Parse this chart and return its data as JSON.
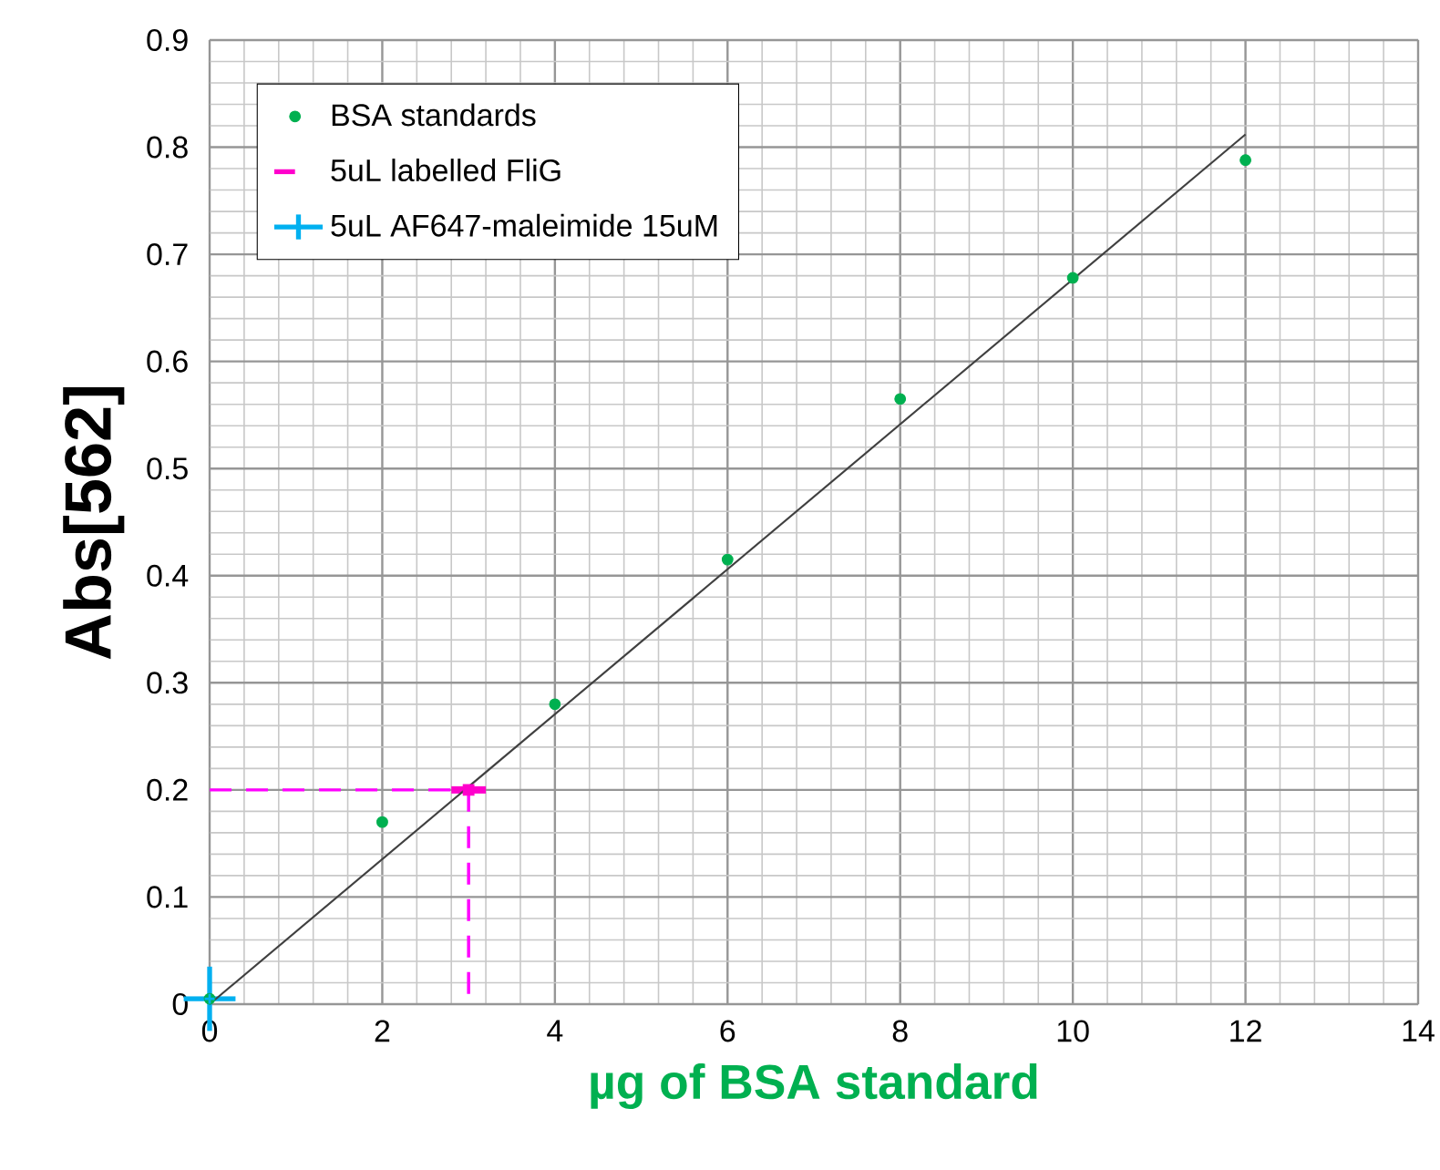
{
  "chart_data": {
    "type": "scatter",
    "xlabel": "µg of BSA standard",
    "ylabel": "Abs[562]",
    "xlim": [
      0,
      14
    ],
    "xticks": [
      0,
      2,
      4,
      6,
      8,
      10,
      12,
      14
    ],
    "ylim": [
      0,
      0.9
    ],
    "yticks": [
      0,
      0.1,
      0.2,
      0.3,
      0.4,
      0.5,
      0.6,
      0.7,
      0.8,
      0.9
    ],
    "grid": true,
    "legend": "top left",
    "series": [
      {
        "name": "BSA standards",
        "marker": "circle",
        "color": "#00b050",
        "x": [
          0,
          2,
          4,
          6,
          8,
          10,
          12
        ],
        "values": [
          0.005,
          0.17,
          0.28,
          0.415,
          0.565,
          0.678,
          0.788
        ]
      },
      {
        "name": "5uL labelled FliG",
        "marker": "square",
        "color": "#ff00cc",
        "x": [
          3
        ],
        "values": [
          0.2
        ],
        "xerrors": [
          0.2
        ]
      },
      {
        "name": "5uL AF647-maleimide 15uM",
        "marker": "cross",
        "color": "#00b0f0",
        "x": [
          0
        ],
        "values": [
          0.005
        ],
        "xerrors": [
          0.3
        ],
        "errors": [
          0.03
        ]
      },
      {
        "type": "line",
        "marker": "none",
        "color": "#404040",
        "x": [
          0,
          12
        ],
        "values": [
          0,
          0.812
        ]
      },
      {
        "type": "line",
        "marker": "none",
        "line_style": "dashed",
        "color": "#ff00ff",
        "x": [
          0,
          3
        ],
        "values": [
          0.2,
          0.2
        ]
      },
      {
        "type": "line",
        "marker": "none",
        "line_style": "dashed",
        "color": "#ff00ff",
        "x": [
          3,
          3
        ],
        "values": [
          0.2,
          0
        ]
      }
    ]
  }
}
